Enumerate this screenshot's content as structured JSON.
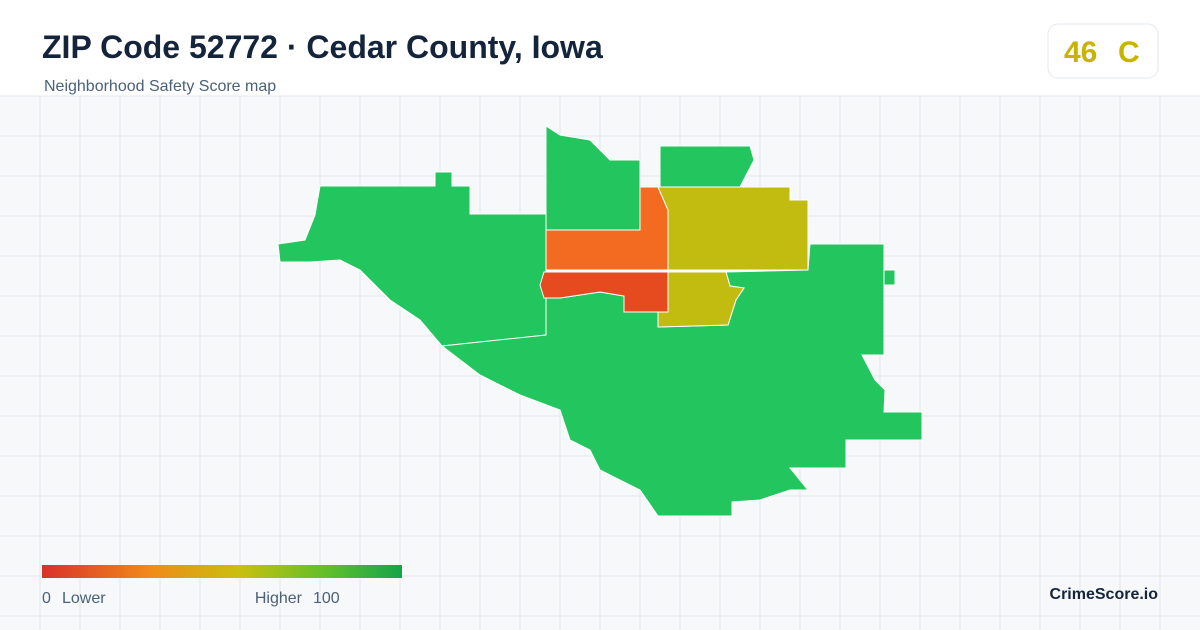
{
  "header": {
    "title": "ZIP Code 52772 · Cedar County, Iowa",
    "subtitle": "Neighborhood Safety Score map"
  },
  "score": {
    "value": 46,
    "grade": "C"
  },
  "legend": {
    "min": 0,
    "min_label": "Lower",
    "max_label": "Higher",
    "max": 100
  },
  "footer": {
    "brand": "CrimeScore.io"
  }
}
